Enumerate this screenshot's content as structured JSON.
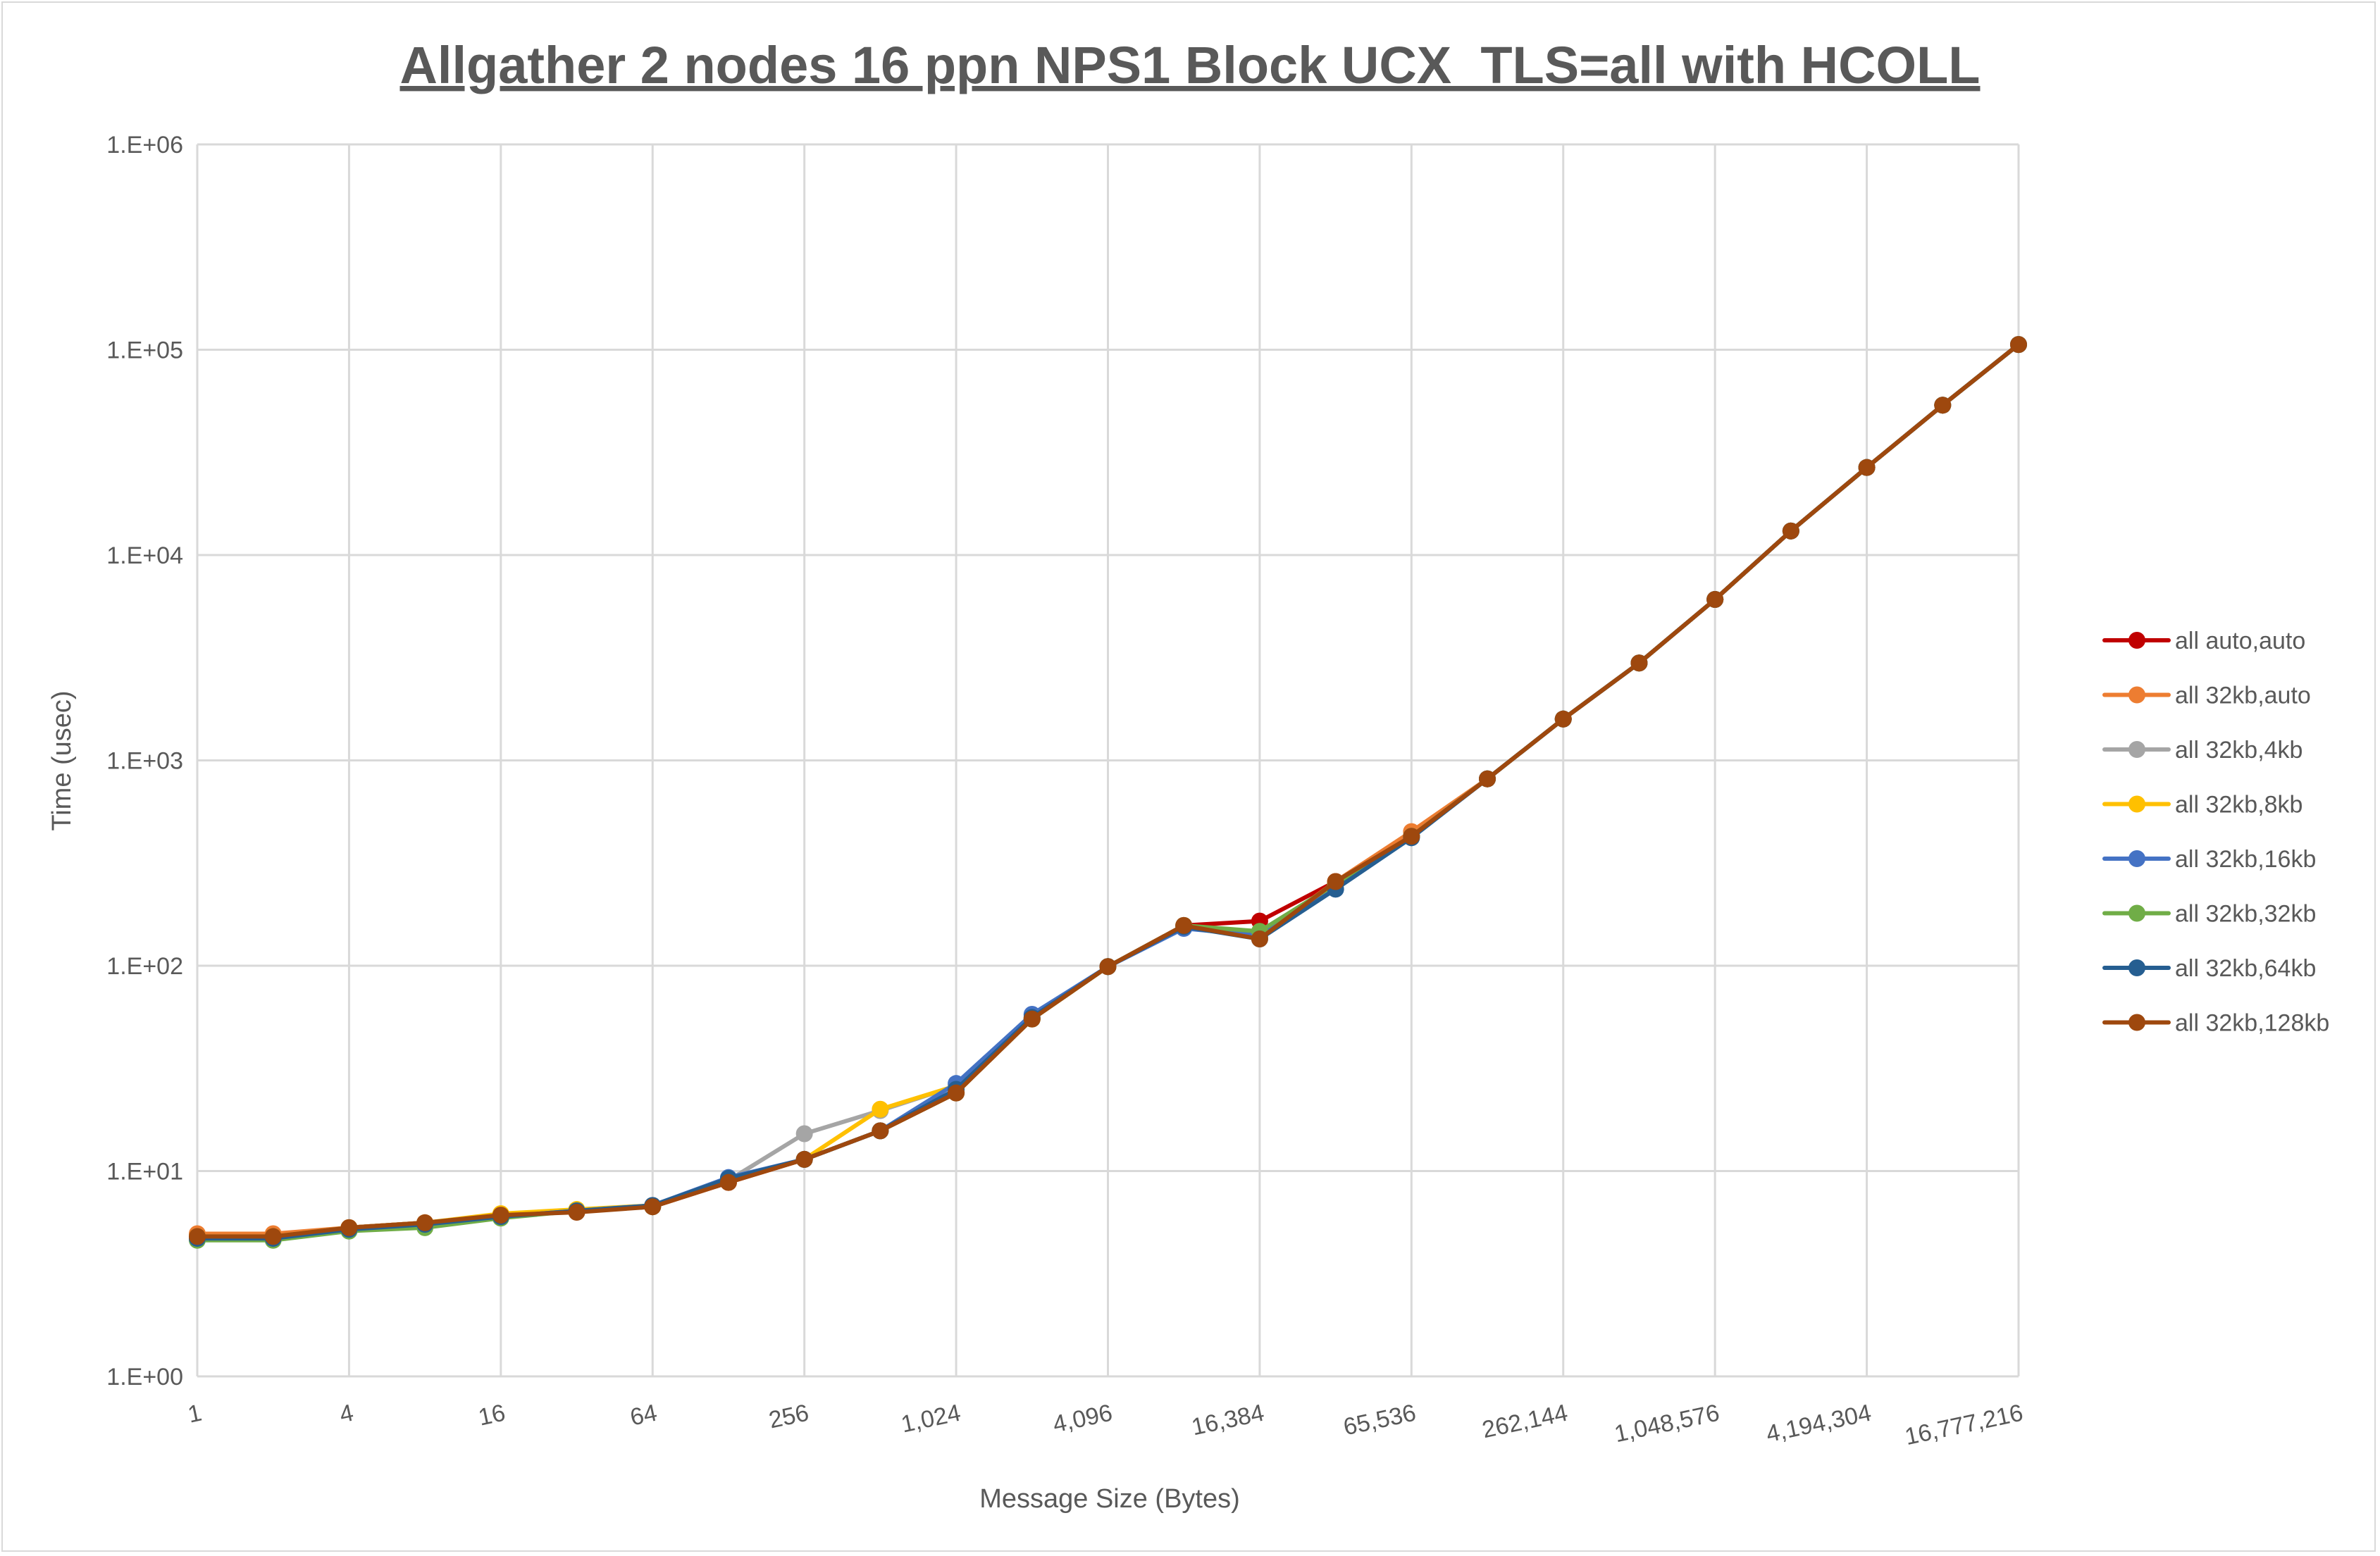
{
  "chart_data": {
    "type": "line",
    "title": "Allgather 2 nodes 16 ppn NPS1 Block UCX_TLS=all with HCOLL",
    "xlabel": "Message Size (Bytes)",
    "ylabel": "Time (usec)",
    "x_scale": "log2",
    "y_scale": "log10",
    "ylim": [
      1,
      1000000
    ],
    "grid": true,
    "legend_position": "right",
    "x": [
      1,
      2,
      4,
      8,
      16,
      32,
      64,
      128,
      256,
      512,
      1024,
      2048,
      4096,
      8192,
      16384,
      32768,
      65536,
      131072,
      262144,
      524288,
      1048576,
      2097152,
      4194304,
      8388608,
      16777216
    ],
    "x_tick_labels": [
      "1",
      "4",
      "16",
      "64",
      "256",
      "1,024",
      "4,096",
      "16,384",
      "65,536",
      "262,144",
      "1,048,576",
      "4,194,304",
      "16,777,216"
    ],
    "y_tick_labels": [
      "1.E+00",
      "1.E+01",
      "1.E+02",
      "1.E+03",
      "1.E+04",
      "1.E+05",
      "1.E+06"
    ],
    "series": [
      {
        "name": "all auto,auto",
        "color": "#c00000",
        "values": [
          4.8,
          4.8,
          5.3,
          5.6,
          6.1,
          6.4,
          6.7,
          8.8,
          11.4,
          15.7,
          24,
          55,
          99,
          157,
          165,
          257,
          427,
          813,
          1590,
          2980,
          6080,
          13100,
          26700,
          53700,
          106000
        ]
      },
      {
        "name": "all 32kb,auto",
        "color": "#ed7d31",
        "values": [
          4.95,
          4.95,
          5.3,
          5.6,
          6.1,
          6.4,
          6.7,
          8.8,
          11.4,
          15.7,
          24,
          55,
          99,
          157,
          138,
          257,
          450,
          813,
          1590,
          2980,
          6080,
          13100,
          26700,
          53700,
          106000
        ]
      },
      {
        "name": "all 32kb,4kb",
        "color": "#a5a5a5",
        "values": [
          4.8,
          4.8,
          5.3,
          5.6,
          6.1,
          6.4,
          6.7,
          9.0,
          15.2,
          19.7,
          26,
          55,
          99,
          157,
          140,
          250,
          427,
          813,
          1590,
          2980,
          6080,
          13100,
          26700,
          53700,
          106000
        ]
      },
      {
        "name": "all 32kb,8kb",
        "color": "#ffc000",
        "values": [
          4.8,
          4.8,
          5.3,
          5.6,
          6.2,
          6.5,
          6.8,
          8.9,
          11.4,
          20,
          26,
          55,
          99,
          155,
          140,
          250,
          427,
          813,
          1590,
          2980,
          6080,
          13100,
          26700,
          53700,
          106000
        ]
      },
      {
        "name": "all 32kb,16kb",
        "color": "#4472c4",
        "values": [
          4.7,
          4.7,
          5.2,
          5.4,
          6.0,
          6.4,
          6.8,
          9.3,
          11.4,
          15.7,
          26.7,
          58,
          99,
          152,
          140,
          236,
          427,
          813,
          1590,
          2980,
          6080,
          13100,
          26700,
          53700,
          106000
        ]
      },
      {
        "name": "all 32kb,32kb",
        "color": "#70ad47",
        "values": [
          4.6,
          4.6,
          5.1,
          5.3,
          5.9,
          6.4,
          6.7,
          8.9,
          11.4,
          15.7,
          24,
          55,
          99,
          157,
          147,
          250,
          427,
          813,
          1590,
          2980,
          6080,
          13100,
          26700,
          53700,
          106000
        ]
      },
      {
        "name": "all 32kb,64kb",
        "color": "#255e91",
        "values": [
          4.7,
          4.7,
          5.2,
          5.5,
          6.0,
          6.4,
          6.8,
          9.2,
          11.4,
          15.7,
          25,
          56,
          99,
          155,
          135,
          236,
          420,
          813,
          1590,
          2980,
          6080,
          13100,
          26700,
          53700,
          106000
        ]
      },
      {
        "name": "all 32kb,128kb",
        "color": "#9e480e",
        "values": [
          4.8,
          4.8,
          5.3,
          5.6,
          6.1,
          6.3,
          6.7,
          8.8,
          11.4,
          15.7,
          24,
          55,
          99,
          157,
          135,
          257,
          427,
          813,
          1590,
          2980,
          6080,
          13100,
          26700,
          53700,
          106000
        ]
      }
    ]
  }
}
